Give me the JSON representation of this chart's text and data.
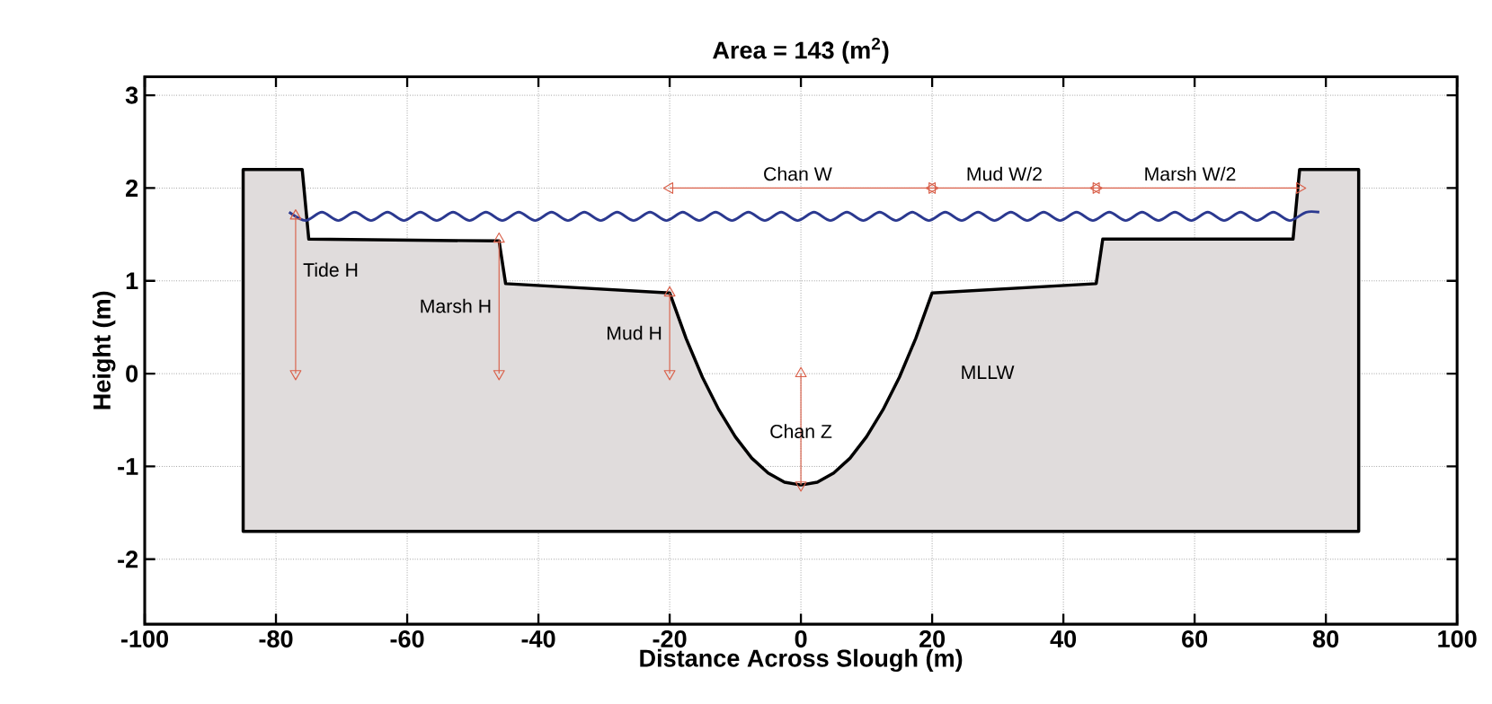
{
  "chart_data": {
    "type": "line",
    "title": "Area =   143 (m$^{2}$)",
    "xlabel": "Distance Across Slough (m)",
    "ylabel": "Height (m)",
    "xlim": [
      -100,
      100
    ],
    "ylim": [
      -2.7,
      3.2
    ],
    "xticks": [
      -100,
      -80,
      -60,
      -40,
      -20,
      0,
      20,
      40,
      60,
      80,
      100
    ],
    "yticks": [
      -2,
      -1,
      0,
      1,
      2,
      3
    ],
    "grid": true,
    "series": [
      {
        "type": "area",
        "color": "#e0dcdc",
        "x": [
          -85,
          -85,
          -76,
          -75,
          -46,
          -45,
          -20,
          -17.5,
          -15,
          -12.5,
          -10,
          -7.5,
          -5,
          -2.5,
          0,
          2.5,
          5,
          7.5,
          10,
          12.5,
          15,
          17.5,
          20,
          45,
          46,
          75,
          76,
          85,
          85
        ],
        "values": [
          -1.7,
          2.2,
          2.2,
          1.45,
          1.43,
          0.97,
          0.87,
          0.38,
          -0.04,
          -0.39,
          -0.68,
          -0.91,
          -1.07,
          -1.17,
          -1.2,
          -1.17,
          -1.07,
          -0.91,
          -0.68,
          -0.39,
          -0.04,
          0.38,
          0.87,
          0.97,
          1.45,
          1.45,
          2.2,
          2.2,
          -1.7
        ]
      },
      {
        "type": "line",
        "color": "#2b3990",
        "x": [
          -78,
          -75.5,
          -73,
          -70.5,
          -68,
          -65.5,
          -63,
          -60.5,
          -58,
          -55.5,
          -53,
          -50.5,
          -48,
          -45.5,
          -43,
          -40.5,
          -38,
          -35.5,
          -33,
          -30.5,
          -28,
          -25.5,
          -23,
          -20.5,
          -18,
          -15.5,
          -13,
          -10.5,
          -8,
          -5.5,
          -3,
          -0.5,
          2,
          4.5,
          7,
          9.5,
          12,
          14.5,
          17,
          19.5,
          22,
          24.5,
          27,
          29.5,
          32,
          34.5,
          37,
          39.5,
          42,
          44.5,
          47,
          49.5,
          52,
          54.5,
          57,
          59.5,
          62,
          64.5,
          67,
          69.5,
          72,
          74.5,
          77,
          79
        ],
        "values": [
          1.74,
          1.65,
          1.74,
          1.65,
          1.74,
          1.65,
          1.74,
          1.65,
          1.74,
          1.65,
          1.74,
          1.65,
          1.74,
          1.65,
          1.74,
          1.65,
          1.74,
          1.65,
          1.74,
          1.65,
          1.74,
          1.65,
          1.74,
          1.65,
          1.74,
          1.65,
          1.74,
          1.65,
          1.74,
          1.65,
          1.74,
          1.65,
          1.74,
          1.65,
          1.74,
          1.65,
          1.74,
          1.65,
          1.74,
          1.65,
          1.74,
          1.65,
          1.74,
          1.65,
          1.74,
          1.65,
          1.74,
          1.65,
          1.74,
          1.65,
          1.74,
          1.65,
          1.74,
          1.65,
          1.74,
          1.65,
          1.74,
          1.65,
          1.74,
          1.65,
          1.74,
          1.65,
          1.74,
          1.74
        ]
      },
      {
        "color": "#d9604a",
        "marker": "triangle",
        "x": [
          -77,
          -77
        ],
        "values": [
          1.7,
          0
        ]
      },
      {
        "color": "#d9604a",
        "marker": "triangle",
        "x": [
          -46,
          -46
        ],
        "values": [
          1.45,
          0
        ]
      },
      {
        "color": "#d9604a",
        "marker": "triangle",
        "x": [
          -20,
          -20
        ],
        "values": [
          0.87,
          0
        ]
      },
      {
        "color": "#d9604a",
        "marker": "triangle",
        "x": [
          0,
          0
        ],
        "values": [
          0,
          -1.2
        ]
      },
      {
        "color": "#d9604a",
        "marker": "triangle",
        "x": [
          -20,
          20
        ],
        "values": [
          2,
          2
        ]
      },
      {
        "color": "#d9604a",
        "marker": "triangle",
        "x": [
          20,
          45
        ],
        "values": [
          2,
          2
        ]
      },
      {
        "color": "#d9604a",
        "marker": "triangle",
        "x": [
          45,
          76
        ],
        "values": [
          2,
          2
        ]
      }
    ],
    "annotations": [
      {
        "text": "Tide H",
        "x": -77,
        "y": 1.12
      },
      {
        "text": "Marsh H",
        "x": -46,
        "y": 0.73
      },
      {
        "text": "Mud H",
        "x": -20,
        "y": 0.44
      },
      {
        "text": "Chan Z",
        "x": 0,
        "y": -0.62
      },
      "MLLW",
      {
        "text": "Chan W",
        "x": -0.5,
        "y": 2
      },
      {
        "text": "Mud W/2",
        "x": 31,
        "y": 2
      },
      {
        "text": "Marsh W/2",
        "x": 59.3,
        "y": 2
      }
    ]
  }
}
